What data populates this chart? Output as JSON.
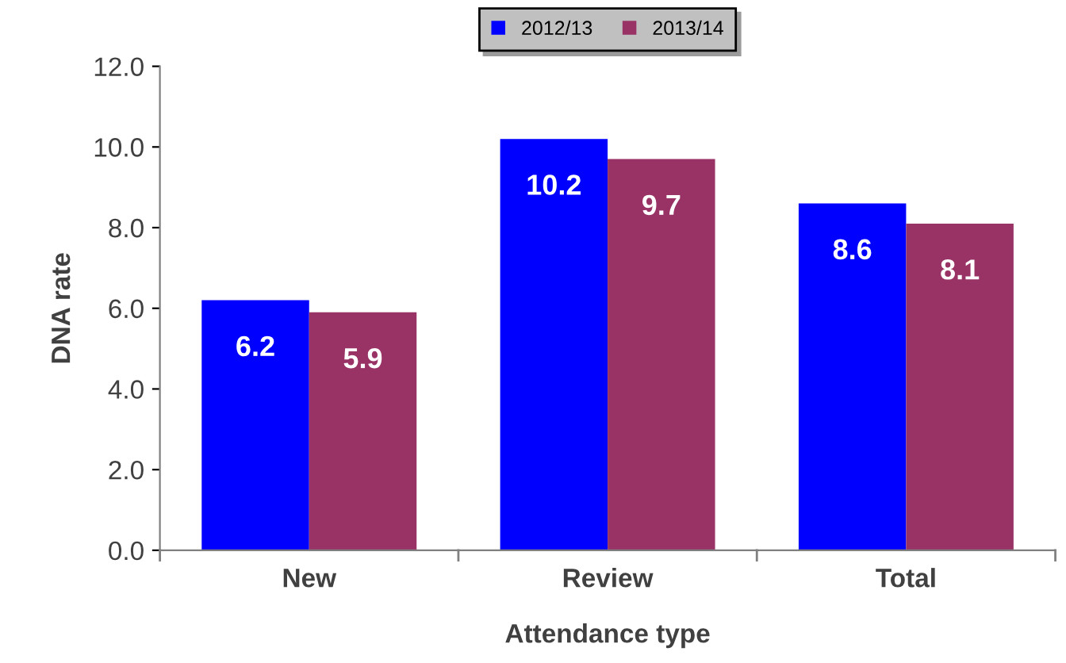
{
  "chart_data": {
    "type": "bar",
    "xlabel": "Attendance type",
    "ylabel": "DNA rate",
    "categories": [
      "New",
      "Review",
      "Total"
    ],
    "series": [
      {
        "name": "2012/13",
        "color": "#0000ff",
        "values": [
          6.2,
          10.2,
          8.6
        ]
      },
      {
        "name": "2013/14",
        "color": "#993366",
        "values": [
          5.9,
          9.7,
          8.1
        ]
      }
    ],
    "ylim": [
      0,
      12
    ],
    "yticks": [
      {
        "value": 0,
        "label": "0.0"
      },
      {
        "value": 2,
        "label": "2.0"
      },
      {
        "value": 4,
        "label": "4.0"
      },
      {
        "value": 6,
        "label": "6.0"
      },
      {
        "value": 8,
        "label": "8.0"
      },
      {
        "value": 10,
        "label": "10.0"
      },
      {
        "value": 12,
        "label": "12.0"
      }
    ],
    "data_labels": true,
    "legend": "top",
    "grid": false
  }
}
